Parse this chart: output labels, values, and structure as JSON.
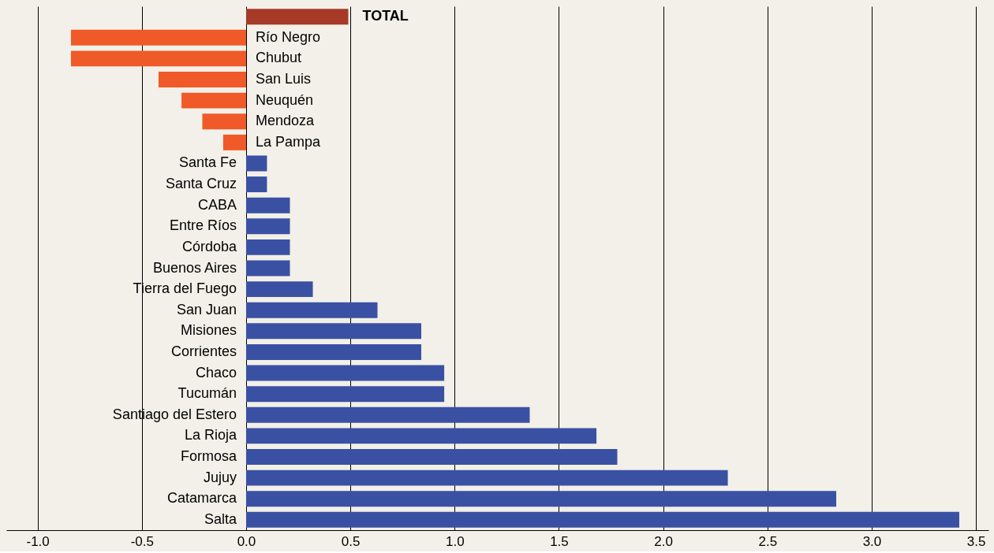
{
  "chart_data": {
    "type": "bar",
    "orientation": "horizontal",
    "categories": [
      "TOTAL",
      "Río Negro",
      "Chubut",
      "San Luis",
      "Neuquén",
      "Mendoza",
      "La Pampa",
      "Santa Fe",
      "Santa Cruz",
      "CABA",
      "Entre Ríos",
      "Córdoba",
      "Buenos Aires",
      "Tierra del Fuego",
      "San Juan",
      "Misiones",
      "Corrientes",
      "Chaco",
      "Tucumán",
      "Santiago del Estero",
      "La Rioja",
      "Formosa",
      "Jujuy",
      "Catamarca",
      "Salta"
    ],
    "values": [
      0.49,
      -0.84,
      -0.84,
      -0.42,
      -0.31,
      -0.21,
      -0.11,
      0.1,
      0.1,
      0.21,
      0.21,
      0.21,
      0.21,
      0.32,
      0.63,
      0.84,
      0.84,
      0.95,
      0.95,
      1.36,
      1.68,
      1.78,
      2.31,
      2.83,
      3.42
    ],
    "colors": [
      "#a63a26",
      "#f05a28",
      "#f05a28",
      "#f05a28",
      "#f05a28",
      "#f05a28",
      "#f05a28",
      "#3a51a3",
      "#3a51a3",
      "#3a51a3",
      "#3a51a3",
      "#3a51a3",
      "#3a51a3",
      "#3a51a3",
      "#3a51a3",
      "#3a51a3",
      "#3a51a3",
      "#3a51a3",
      "#3a51a3",
      "#3a51a3",
      "#3a51a3",
      "#3a51a3",
      "#3a51a3",
      "#3a51a3",
      "#3a51a3"
    ],
    "xlim": [
      -1.15,
      3.56
    ],
    "xticks": [
      {
        "value": -1,
        "label": "-1.0"
      },
      {
        "value": -0.5,
        "label": "-0.5"
      },
      {
        "value": 0,
        "label": "0.0"
      },
      {
        "value": 0.5,
        "label": "0.5"
      },
      {
        "value": 1,
        "label": "1.0"
      },
      {
        "value": 1.5,
        "label": "1.5"
      },
      {
        "value": 2,
        "label": "2.0"
      },
      {
        "value": 2.5,
        "label": "2.5"
      },
      {
        "value": 3,
        "label": "3.0"
      },
      {
        "value": 3.5,
        "label": "3.5"
      }
    ],
    "grid": "x"
  }
}
